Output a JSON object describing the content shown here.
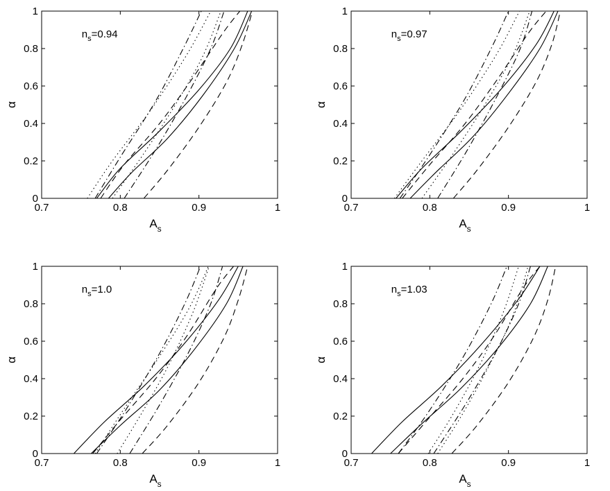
{
  "figure": {
    "background": "#ffffff",
    "line_color": "#000000"
  },
  "chart_data": [
    {
      "type": "line",
      "annotation": {
        "base": "n",
        "sub": "s",
        "rest": "=0.94"
      },
      "xlabel": {
        "base": "A",
        "sub": "s"
      },
      "ylabel": "α",
      "xlim": [
        0.7,
        1.0
      ],
      "ylim": [
        0,
        1
      ],
      "xticks": [
        "0.7",
        "0.8",
        "0.9",
        "1"
      ],
      "yticks": [
        "0",
        "0.2",
        "0.4",
        "0.6",
        "0.8",
        "1"
      ],
      "grid": false,
      "series": [
        {
          "style": "solid",
          "points": [
            [
              0.77,
              0
            ],
            [
              0.8,
              0.16
            ],
            [
              0.85,
              0.36
            ],
            [
              0.9,
              0.58
            ],
            [
              0.94,
              0.8
            ],
            [
              0.962,
              1
            ]
          ]
        },
        {
          "style": "solid",
          "points": [
            [
              0.785,
              0
            ],
            [
              0.815,
              0.14
            ],
            [
              0.86,
              0.32
            ],
            [
              0.905,
              0.55
            ],
            [
              0.945,
              0.8
            ],
            [
              0.967,
              1
            ]
          ]
        },
        {
          "style": "dashed",
          "points": [
            [
              0.775,
              0
            ],
            [
              0.805,
              0.18
            ],
            [
              0.85,
              0.4
            ],
            [
              0.89,
              0.63
            ],
            [
              0.93,
              0.88
            ],
            [
              0.952,
              1
            ]
          ]
        },
        {
          "style": "dashed",
          "points": [
            [
              0.83,
              0
            ],
            [
              0.86,
              0.15
            ],
            [
              0.9,
              0.38
            ],
            [
              0.935,
              0.62
            ],
            [
              0.955,
              0.82
            ],
            [
              0.968,
              1
            ]
          ]
        },
        {
          "style": "dotted",
          "points": [
            [
              0.758,
              0
            ],
            [
              0.79,
              0.2
            ],
            [
              0.84,
              0.48
            ],
            [
              0.885,
              0.77
            ],
            [
              0.915,
              1
            ]
          ]
        },
        {
          "style": "dotted",
          "points": [
            [
              0.79,
              0
            ],
            [
              0.83,
              0.24
            ],
            [
              0.87,
              0.5
            ],
            [
              0.905,
              0.76
            ],
            [
              0.928,
              1
            ]
          ]
        },
        {
          "style": "dashdot",
          "points": [
            [
              0.768,
              0
            ],
            [
              0.8,
              0.22
            ],
            [
              0.845,
              0.52
            ],
            [
              0.88,
              0.8
            ],
            [
              0.903,
              1
            ]
          ]
        },
        {
          "style": "dashdot",
          "points": [
            [
              0.805,
              0
            ],
            [
              0.845,
              0.26
            ],
            [
              0.885,
              0.55
            ],
            [
              0.915,
              0.8
            ],
            [
              0.932,
              1
            ]
          ]
        }
      ]
    },
    {
      "type": "line",
      "annotation": {
        "base": "n",
        "sub": "s",
        "rest": "=0.97"
      },
      "xlabel": {
        "base": "A",
        "sub": "s"
      },
      "ylabel": "α",
      "xlim": [
        0.7,
        1.0
      ],
      "ylim": [
        0,
        1
      ],
      "xticks": [
        "0.7",
        "0.8",
        "0.9",
        "1"
      ],
      "yticks": [
        "0",
        "0.2",
        "0.4",
        "0.6",
        "0.8",
        "1"
      ],
      "grid": false,
      "series": [
        {
          "style": "solid",
          "points": [
            [
              0.757,
              0
            ],
            [
              0.79,
              0.16
            ],
            [
              0.84,
              0.36
            ],
            [
              0.89,
              0.58
            ],
            [
              0.935,
              0.82
            ],
            [
              0.958,
              1
            ]
          ]
        },
        {
          "style": "solid",
          "points": [
            [
              0.775,
              0
            ],
            [
              0.808,
              0.14
            ],
            [
              0.855,
              0.33
            ],
            [
              0.9,
              0.56
            ],
            [
              0.94,
              0.8
            ],
            [
              0.963,
              1
            ]
          ]
        },
        {
          "style": "dashed",
          "points": [
            [
              0.765,
              0
            ],
            [
              0.8,
              0.18
            ],
            [
              0.845,
              0.4
            ],
            [
              0.885,
              0.63
            ],
            [
              0.925,
              0.88
            ],
            [
              0.948,
              1
            ]
          ]
        },
        {
          "style": "dashed",
          "points": [
            [
              0.83,
              0
            ],
            [
              0.86,
              0.15
            ],
            [
              0.9,
              0.38
            ],
            [
              0.935,
              0.62
            ],
            [
              0.955,
              0.82
            ],
            [
              0.966,
              1
            ]
          ]
        },
        {
          "style": "dotted",
          "points": [
            [
              0.755,
              0
            ],
            [
              0.79,
              0.2
            ],
            [
              0.84,
              0.48
            ],
            [
              0.885,
              0.77
            ],
            [
              0.914,
              1
            ]
          ]
        },
        {
          "style": "dotted",
          "points": [
            [
              0.79,
              0
            ],
            [
              0.83,
              0.24
            ],
            [
              0.87,
              0.5
            ],
            [
              0.905,
              0.76
            ],
            [
              0.927,
              1
            ]
          ]
        },
        {
          "style": "dashdot",
          "points": [
            [
              0.762,
              0
            ],
            [
              0.798,
              0.22
            ],
            [
              0.843,
              0.52
            ],
            [
              0.878,
              0.8
            ],
            [
              0.9,
              1
            ]
          ]
        },
        {
          "style": "dashdot",
          "points": [
            [
              0.81,
              0
            ],
            [
              0.848,
              0.26
            ],
            [
              0.886,
              0.55
            ],
            [
              0.915,
              0.8
            ],
            [
              0.93,
              1
            ]
          ]
        }
      ]
    },
    {
      "type": "line",
      "annotation": {
        "base": "n",
        "sub": "s",
        "rest": "=1.0"
      },
      "xlabel": {
        "base": "A",
        "sub": "s"
      },
      "ylabel": "α",
      "xlim": [
        0.7,
        1.0
      ],
      "ylim": [
        0,
        1
      ],
      "xticks": [
        "0.7",
        "0.8",
        "0.9",
        "1"
      ],
      "yticks": [
        "0",
        "0.2",
        "0.4",
        "0.6",
        "0.8",
        "1"
      ],
      "grid": false,
      "series": [
        {
          "style": "solid",
          "points": [
            [
              0.741,
              0
            ],
            [
              0.78,
              0.17
            ],
            [
              0.83,
              0.36
            ],
            [
              0.88,
              0.58
            ],
            [
              0.925,
              0.82
            ],
            [
              0.95,
              1
            ]
          ]
        },
        {
          "style": "solid",
          "points": [
            [
              0.763,
              0
            ],
            [
              0.8,
              0.15
            ],
            [
              0.85,
              0.34
            ],
            [
              0.895,
              0.56
            ],
            [
              0.935,
              0.8
            ],
            [
              0.956,
              1
            ]
          ]
        },
        {
          "style": "dashed",
          "points": [
            [
              0.765,
              0
            ],
            [
              0.8,
              0.18
            ],
            [
              0.845,
              0.4
            ],
            [
              0.885,
              0.63
            ],
            [
              0.922,
              0.88
            ],
            [
              0.944,
              1
            ]
          ]
        },
        {
          "style": "dashed",
          "points": [
            [
              0.828,
              0
            ],
            [
              0.86,
              0.15
            ],
            [
              0.9,
              0.38
            ],
            [
              0.932,
              0.62
            ],
            [
              0.95,
              0.82
            ],
            [
              0.962,
              1
            ]
          ]
        },
        {
          "style": "dotted",
          "points": [
            [
              0.796,
              0
            ],
            [
              0.825,
              0.2
            ],
            [
              0.86,
              0.46
            ],
            [
              0.892,
              0.75
            ],
            [
              0.913,
              1
            ]
          ]
        },
        {
          "style": "dotted",
          "points": [
            [
              0.768,
              0
            ],
            [
              0.805,
              0.24
            ],
            [
              0.85,
              0.52
            ],
            [
              0.888,
              0.78
            ],
            [
              0.912,
              1
            ]
          ]
        },
        {
          "style": "dashdot",
          "points": [
            [
              0.77,
              0
            ],
            [
              0.805,
              0.22
            ],
            [
              0.848,
              0.52
            ],
            [
              0.882,
              0.8
            ],
            [
              0.902,
              1
            ]
          ]
        },
        {
          "style": "dashdot",
          "points": [
            [
              0.812,
              0
            ],
            [
              0.85,
              0.26
            ],
            [
              0.888,
              0.55
            ],
            [
              0.915,
              0.8
            ],
            [
              0.93,
              1
            ]
          ]
        }
      ]
    },
    {
      "type": "line",
      "annotation": {
        "base": "n",
        "sub": "s",
        "rest": "=1.03"
      },
      "xlabel": {
        "base": "A",
        "sub": "s"
      },
      "ylabel": "α",
      "xlim": [
        0.7,
        1.0
      ],
      "ylim": [
        0,
        1
      ],
      "xticks": [
        "0.7",
        "0.8",
        "0.9",
        "1"
      ],
      "yticks": [
        "0",
        "0.2",
        "0.4",
        "0.6",
        "0.8",
        "1"
      ],
      "grid": false,
      "series": [
        {
          "style": "solid",
          "points": [
            [
              0.726,
              0
            ],
            [
              0.765,
              0.17
            ],
            [
              0.815,
              0.36
            ],
            [
              0.865,
              0.58
            ],
            [
              0.912,
              0.82
            ],
            [
              0.94,
              1
            ]
          ]
        },
        {
          "style": "solid",
          "points": [
            [
              0.75,
              0
            ],
            [
              0.79,
              0.16
            ],
            [
              0.84,
              0.35
            ],
            [
              0.888,
              0.57
            ],
            [
              0.928,
              0.8
            ],
            [
              0.95,
              1
            ]
          ]
        },
        {
          "style": "dashed",
          "points": [
            [
              0.76,
              0
            ],
            [
              0.797,
              0.18
            ],
            [
              0.842,
              0.4
            ],
            [
              0.882,
              0.63
            ],
            [
              0.918,
              0.88
            ],
            [
              0.94,
              1
            ]
          ]
        },
        {
          "style": "dashed",
          "points": [
            [
              0.828,
              0
            ],
            [
              0.86,
              0.15
            ],
            [
              0.9,
              0.38
            ],
            [
              0.932,
              0.62
            ],
            [
              0.95,
              0.82
            ],
            [
              0.96,
              1
            ]
          ]
        },
        {
          "style": "dotted",
          "points": [
            [
              0.798,
              0
            ],
            [
              0.828,
              0.2
            ],
            [
              0.862,
              0.46
            ],
            [
              0.893,
              0.75
            ],
            [
              0.913,
              1
            ]
          ]
        },
        {
          "style": "dotted",
          "points": [
            [
              0.81,
              0
            ],
            [
              0.84,
              0.2
            ],
            [
              0.873,
              0.45
            ],
            [
              0.905,
              0.73
            ],
            [
              0.925,
              1
            ]
          ]
        },
        {
          "style": "dashdot",
          "points": [
            [
              0.76,
              0
            ],
            [
              0.798,
              0.22
            ],
            [
              0.843,
              0.52
            ],
            [
              0.878,
              0.8
            ],
            [
              0.898,
              1
            ]
          ]
        },
        {
          "style": "dashdot",
          "points": [
            [
              0.805,
              0
            ],
            [
              0.845,
              0.26
            ],
            [
              0.885,
              0.55
            ],
            [
              0.913,
              0.8
            ],
            [
              0.928,
              1
            ]
          ]
        }
      ]
    }
  ]
}
